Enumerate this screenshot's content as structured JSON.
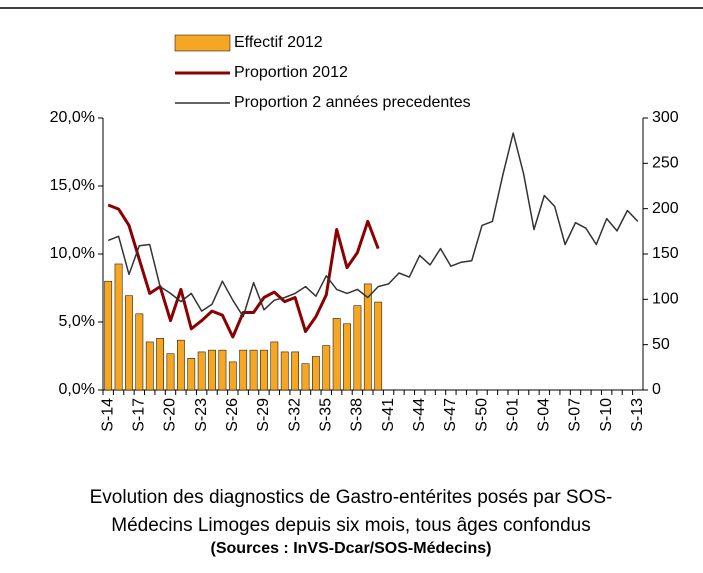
{
  "chart_data": {
    "type": "bar-line",
    "categories": [
      "S-14",
      null,
      null,
      "S-17",
      null,
      null,
      "S-20",
      null,
      null,
      "S-23",
      null,
      null,
      "S-26",
      null,
      null,
      "S-29",
      null,
      null,
      "S-32",
      null,
      null,
      "S-35",
      null,
      null,
      "S-38",
      null,
      null,
      "S-41",
      null,
      null,
      "S-44",
      null,
      null,
      "S-47",
      null,
      null,
      "S-50",
      null,
      null,
      "S-01",
      null,
      null,
      "S-04",
      null,
      null,
      "S-07",
      null,
      null,
      "S-10",
      null,
      null,
      "S-13"
    ],
    "series": [
      {
        "name": "Effectif 2012",
        "type": "bar",
        "axis": "y2",
        "color": "#f5a623",
        "values": [
          120,
          139,
          104,
          84,
          53,
          57,
          40,
          55,
          35,
          42,
          44,
          44,
          31,
          44,
          44,
          44,
          53,
          42,
          42,
          29,
          37,
          49,
          79,
          73,
          93,
          117,
          97,
          null,
          null,
          null,
          null,
          null,
          null,
          null,
          null,
          null,
          null,
          null,
          null,
          null,
          null,
          null,
          null,
          null,
          null,
          null,
          null,
          null,
          null,
          null,
          null,
          null
        ]
      },
      {
        "name": "Proportion 2012",
        "type": "line",
        "color": "#8b0000",
        "values": [
          13.6,
          13.3,
          12.1,
          9.6,
          7.1,
          7.6,
          5.1,
          7.4,
          4.5,
          5.1,
          5.8,
          5.5,
          3.9,
          5.7,
          5.7,
          6.8,
          7.2,
          6.5,
          6.8,
          4.3,
          5.4,
          7.0,
          11.8,
          9.0,
          10.1,
          12.4,
          10.4,
          null,
          null,
          null,
          null,
          null,
          null,
          null,
          null,
          null,
          null,
          null,
          null,
          null,
          null,
          null,
          null,
          null,
          null,
          null,
          null,
          null,
          null,
          null,
          null,
          null
        ]
      },
      {
        "name": "Proportion 2 années precedentes",
        "type": "line",
        "color": "#333333",
        "values": [
          11.0,
          11.3,
          8.5,
          10.6,
          10.7,
          7.6,
          7.1,
          6.5,
          7.1,
          5.8,
          6.3,
          8.0,
          6.6,
          5.4,
          7.9,
          5.9,
          6.6,
          6.8,
          7.1,
          7.6,
          6.9,
          8.4,
          7.4,
          7.1,
          7.4,
          6.8,
          7.6,
          7.8,
          8.6,
          8.3,
          9.9,
          9.2,
          10.4,
          9.1,
          9.4,
          9.5,
          12.1,
          12.4,
          15.8,
          18.9,
          15.9,
          11.8,
          14.3,
          13.5,
          10.7,
          12.3,
          11.9,
          10.7,
          12.6,
          11.7,
          13.2,
          12.4
        ]
      }
    ],
    "ylim": [
      0,
      20
    ],
    "yticks": [
      {
        "value": 0,
        "label": "0,0%"
      },
      {
        "value": 5,
        "label": "5,0%"
      },
      {
        "value": 10,
        "label": "10,0%"
      },
      {
        "value": 15,
        "label": "15,0%"
      },
      {
        "value": 20,
        "label": "20,0%"
      }
    ],
    "y2lim": [
      0,
      300
    ],
    "y2ticks": [
      0,
      50,
      100,
      150,
      200,
      250,
      300
    ],
    "caption": [
      "Evolution des diagnostics de Gastro-entérites posés par SOS-",
      "Médecins Limoges depuis six mois, tous âges confondus"
    ],
    "source": "(Sources : InVS-Dcar/SOS-Médecins)"
  }
}
